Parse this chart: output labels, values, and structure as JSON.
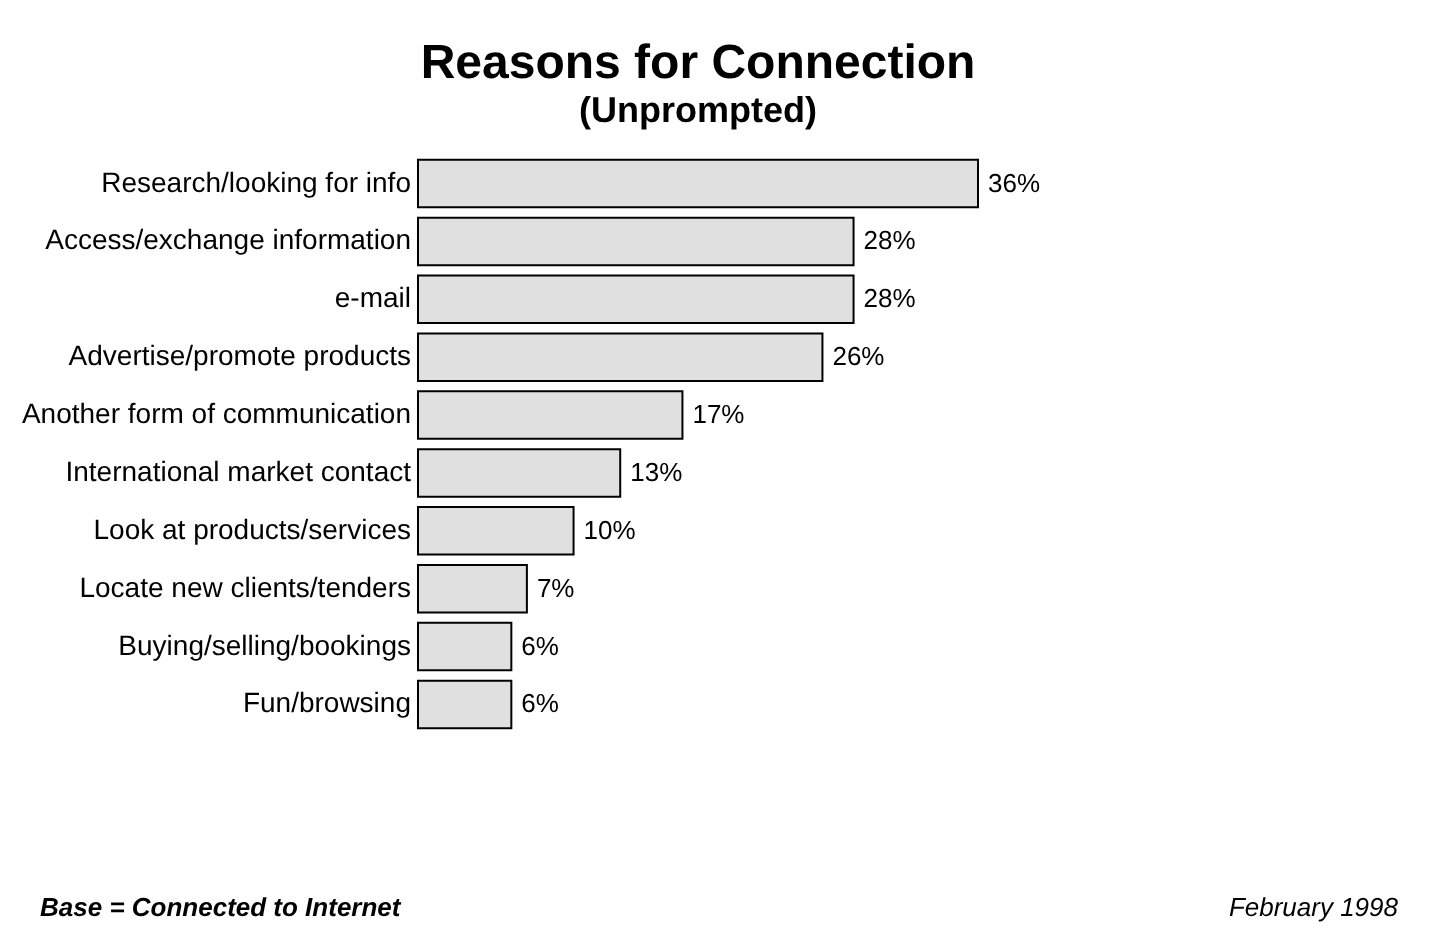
{
  "chart_data": {
    "type": "bar",
    "orientation": "horizontal",
    "title": "Reasons for Connection",
    "subtitle": "(Unprompted)",
    "categories": [
      "Research/looking for info",
      "Access/exchange information",
      "e-mail",
      "Advertise/promote products",
      "Another form of communication",
      "International market contact",
      "Look at products/services",
      "Locate new clients/tenders",
      "Buying/selling/bookings",
      "Fun/browsing"
    ],
    "values": [
      36,
      28,
      28,
      26,
      17,
      13,
      10,
      7,
      6,
      6
    ],
    "value_labels": [
      "36%",
      "28%",
      "28%",
      "26%",
      "17%",
      "13%",
      "10%",
      "7%",
      "6%",
      "6%"
    ],
    "color": "#e0e0e0",
    "annotations": [
      "February 1998",
      "Base = Connected to Internet"
    ]
  }
}
